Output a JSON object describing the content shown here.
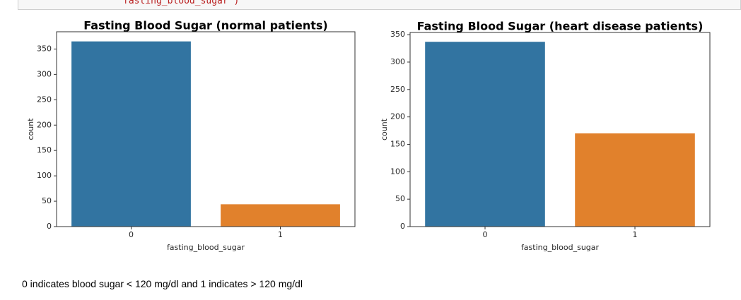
{
  "code_fragment": "fasting_blood_sugar')",
  "note": "0 indicates blood sugar < 120 mg/dl and 1 indicates > 120 mg/dl",
  "chart_data": [
    {
      "type": "bar",
      "title": "Fasting Blood Sugar  (normal patients)",
      "x_label": "fasting_blood_sugar",
      "y_label": "count",
      "categories": [
        "0",
        "1"
      ],
      "values": [
        365,
        44
      ],
      "colors": [
        "#3274a1",
        "#e1812c"
      ],
      "ylim": [
        0,
        384
      ],
      "yticks": [
        0,
        50,
        100,
        150,
        200,
        250,
        300,
        350
      ],
      "grid": false
    },
    {
      "type": "bar",
      "title": "Fasting Blood Sugar (heart disease patients)",
      "x_label": "fasting_blood_sugar",
      "y_label": "count",
      "categories": [
        "0",
        "1"
      ],
      "values": [
        337,
        170
      ],
      "colors": [
        "#3274a1",
        "#e1812c"
      ],
      "ylim": [
        0,
        354
      ],
      "yticks": [
        0,
        50,
        100,
        150,
        200,
        250,
        300,
        350
      ],
      "grid": false
    }
  ]
}
